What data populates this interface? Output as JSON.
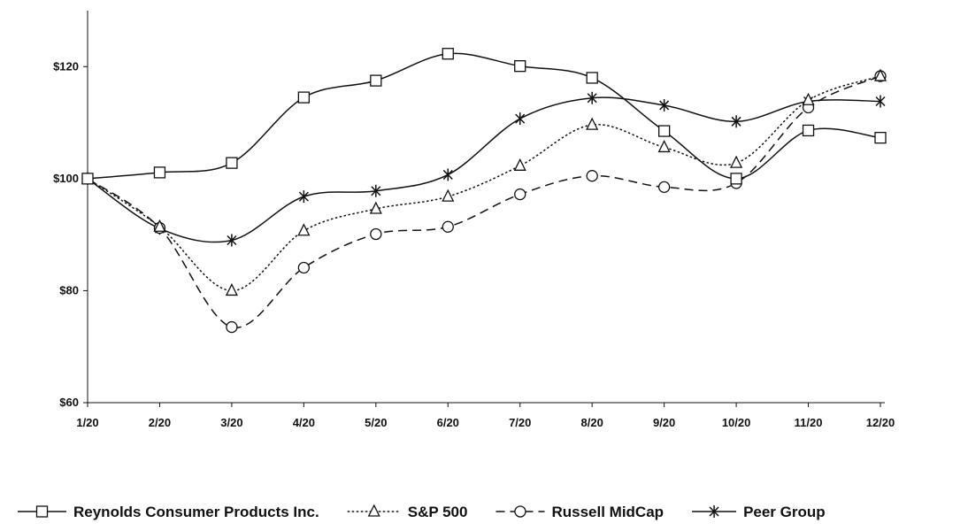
{
  "chart_data": {
    "type": "line",
    "categories": [
      "1/20",
      "2/20",
      "3/20",
      "4/20",
      "5/20",
      "6/20",
      "7/20",
      "8/20",
      "9/20",
      "10/20",
      "11/20",
      "12/20"
    ],
    "ylim": [
      60,
      130
    ],
    "yticks": [
      60,
      80,
      100,
      120
    ],
    "ytick_labels": [
      "$60",
      "$80",
      "$100",
      "$120"
    ],
    "grid": false,
    "legend_position": "bottom",
    "series": [
      {
        "name": "Reynolds Consumer Products Inc.",
        "marker": "square",
        "dash": "solid",
        "color": "#111111",
        "values": [
          100,
          101.1,
          102.8,
          114.5,
          117.5,
          122.3,
          120.1,
          118.0,
          108.5,
          100.0,
          108.6,
          107.3
        ]
      },
      {
        "name": "S&P 500",
        "marker": "triangle",
        "dash": "dotted",
        "color": "#111111",
        "values": [
          100,
          91.4,
          80.0,
          90.7,
          94.6,
          96.8,
          102.3,
          109.6,
          105.6,
          102.8,
          114.0,
          118.3
        ]
      },
      {
        "name": "Russell MidCap",
        "marker": "circle",
        "dash": "dashed",
        "color": "#111111",
        "values": [
          100,
          91.2,
          73.5,
          84.1,
          90.1,
          91.4,
          97.2,
          100.5,
          98.5,
          99.2,
          112.7,
          118.3
        ]
      },
      {
        "name": "Peer Group",
        "marker": "asterisk",
        "dash": "solid",
        "color": "#111111",
        "values": [
          100,
          91.1,
          89.0,
          96.8,
          97.8,
          100.7,
          110.7,
          114.4,
          113.1,
          110.2,
          113.8,
          113.8
        ]
      }
    ]
  }
}
